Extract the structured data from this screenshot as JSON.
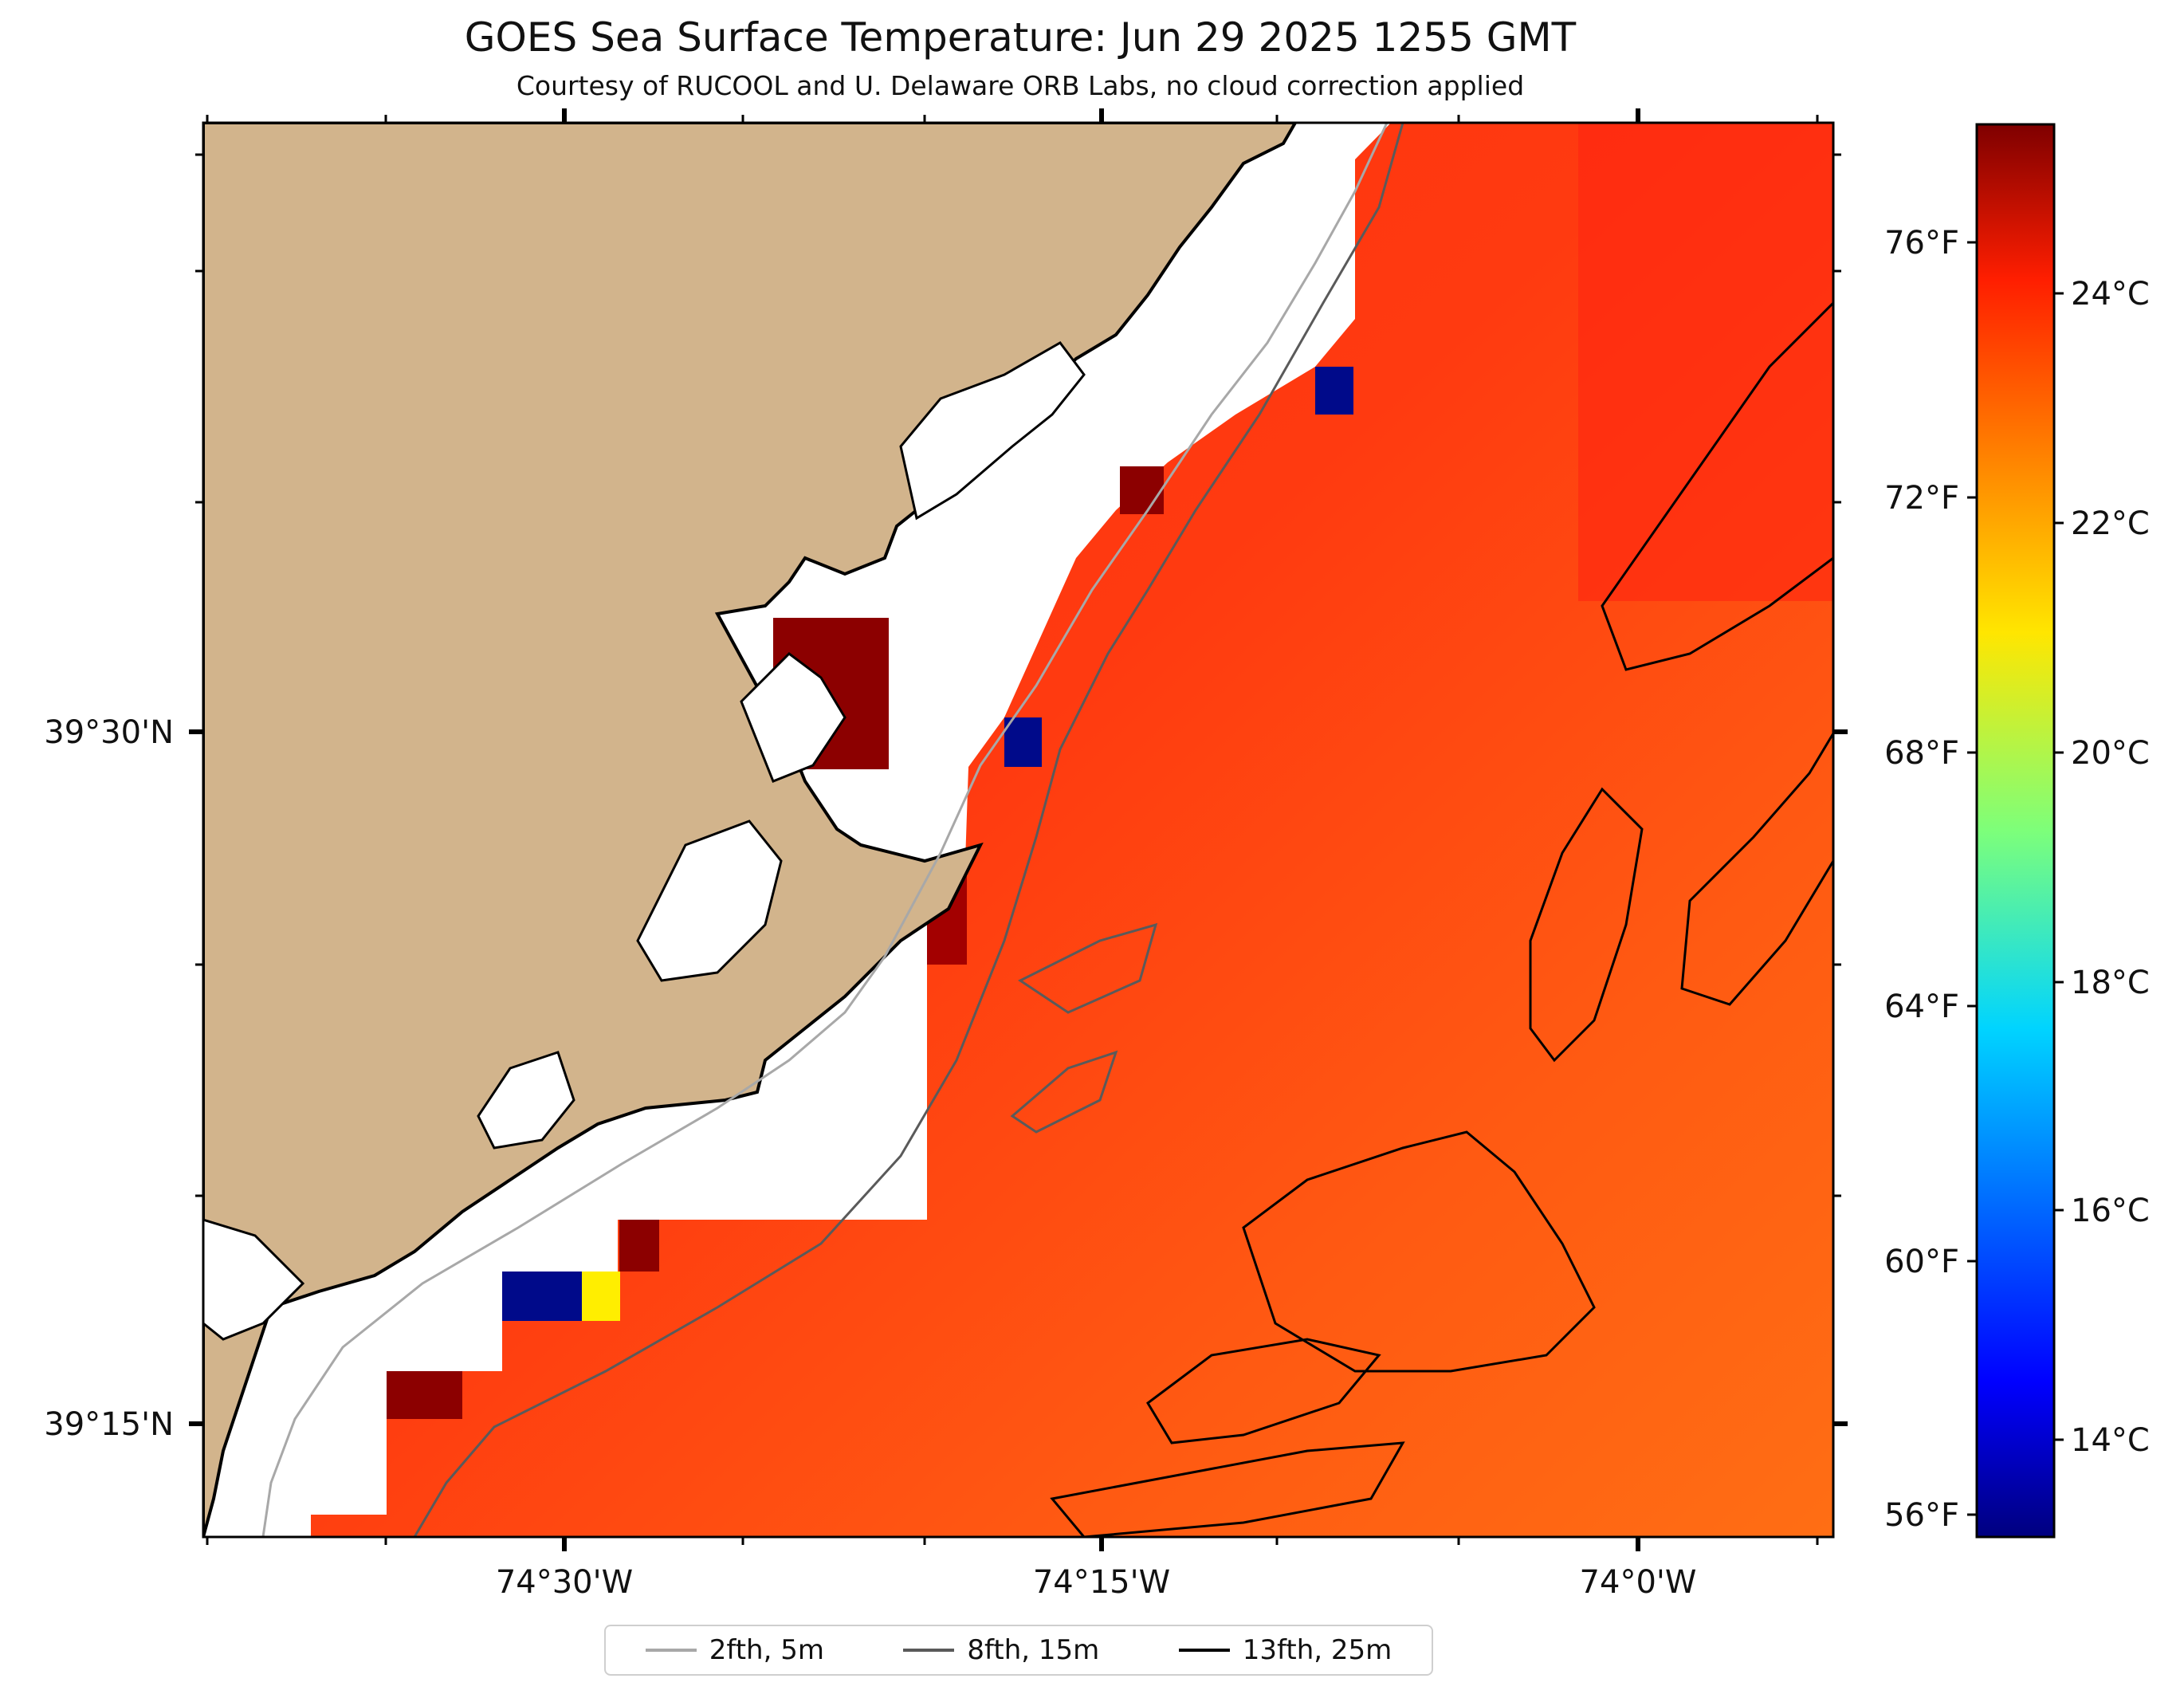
{
  "title": "GOES Sea Surface Temperature: Jun 29 2025 1255 GMT",
  "subtitle": "Courtesy of RUCOOL and U. Delaware ORB Labs, no cloud correction applied",
  "axes": {
    "lon_labels": [
      "74°30'W",
      "74°15'W",
      "74°0'W"
    ],
    "lat_labels": [
      "39°30'N",
      "39°15'N"
    ]
  },
  "colorbar": {
    "colormap": "jet",
    "celsius_labels": [
      "24°C",
      "22°C",
      "20°C",
      "18°C",
      "16°C",
      "14°C"
    ],
    "fahrenheit_labels": [
      "76°F",
      "72°F",
      "68°F",
      "64°F",
      "60°F",
      "56°F"
    ],
    "range_celsius": [
      13.2,
      25.4
    ]
  },
  "legend": [
    {
      "label": "2fth, 5m",
      "color": "#a8a8a8"
    },
    {
      "label": "8fth, 15m",
      "color": "#5a5a5a"
    },
    {
      "label": "13fth, 25m",
      "color": "#000000"
    }
  ],
  "colors": {
    "land": "#d2b48c",
    "no_data": "#ffffff",
    "sst_dominant": "#ff3010"
  }
}
